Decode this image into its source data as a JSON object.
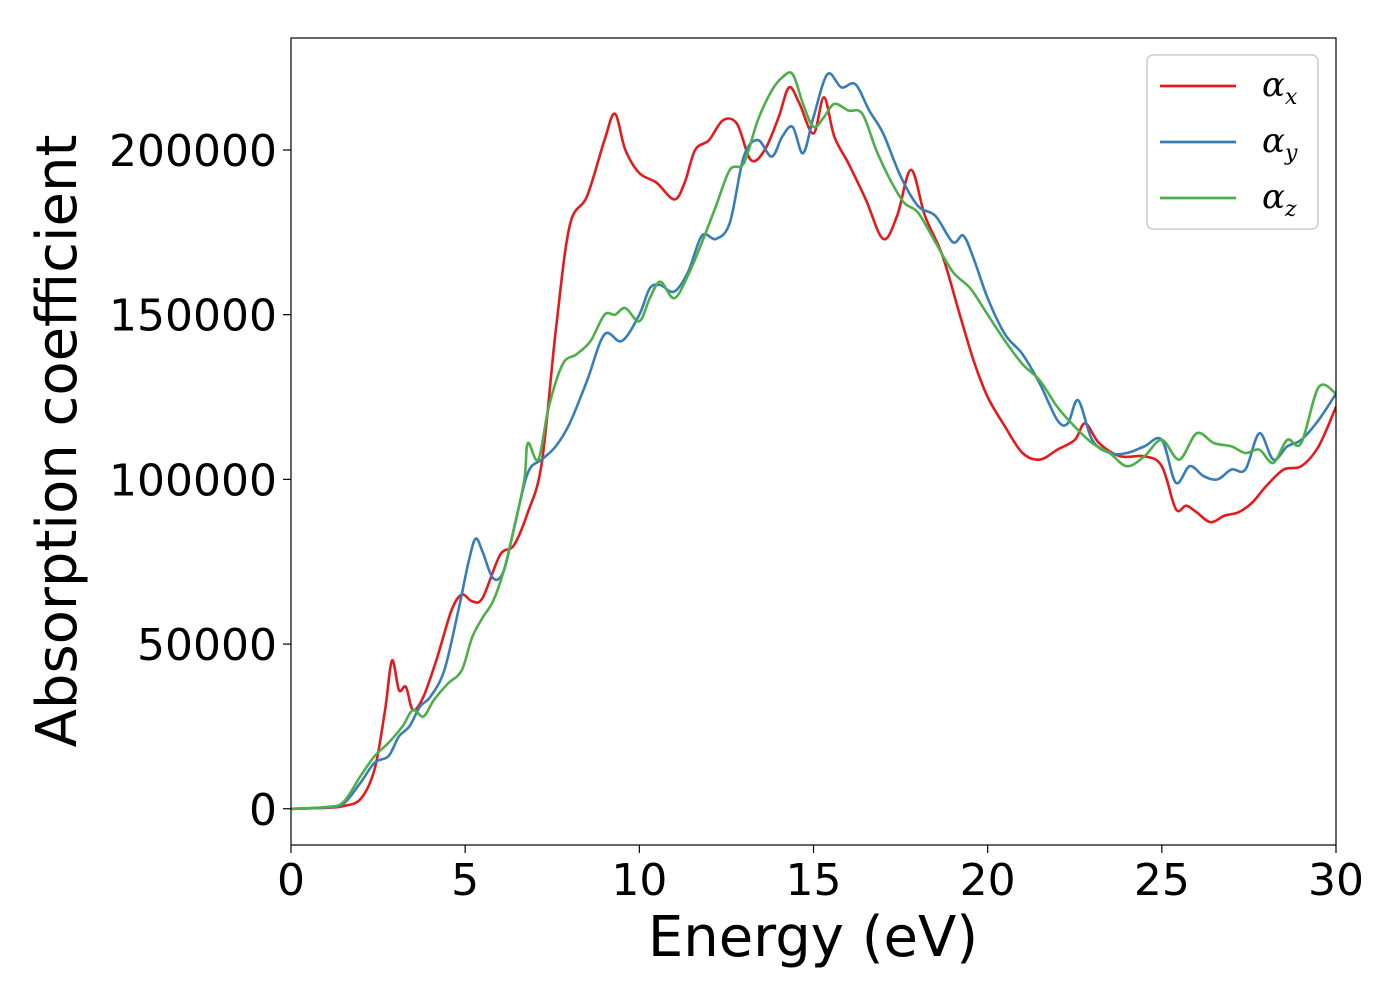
{
  "chart_data": {
    "type": "line",
    "title": "",
    "xlabel": "Energy (eV)",
    "ylabel": "Absorption coefficient",
    "xlim": [
      0,
      30
    ],
    "ylim": [
      -11000,
      234000
    ],
    "xticks": [
      0,
      5,
      10,
      15,
      20,
      25,
      30
    ],
    "yticks": [
      0,
      50000,
      100000,
      150000,
      200000
    ],
    "xtick_labels": [
      "0",
      "5",
      "10",
      "15",
      "20",
      "25",
      "30"
    ],
    "ytick_labels": [
      "0",
      "50000",
      "100000",
      "150000",
      "200000"
    ],
    "grid": false,
    "legend_position": "top-right",
    "series": [
      {
        "name": "α",
        "name_sub": "x",
        "color": "#e41a1c",
        "x": [
          0,
          1.0,
          1.5,
          2.0,
          2.4,
          2.7,
          2.9,
          3.1,
          3.3,
          3.5,
          3.8,
          4.2,
          4.6,
          4.9,
          5.2,
          5.5,
          6.0,
          6.4,
          6.8,
          7.2,
          7.6,
          8.0,
          8.5,
          9.0,
          9.3,
          9.6,
          10.0,
          10.5,
          11.0,
          11.3,
          11.6,
          12.0,
          12.4,
          12.8,
          13.2,
          13.6,
          14.0,
          14.3,
          14.6,
          15.0,
          15.3,
          15.6,
          16.0,
          16.5,
          17.0,
          17.4,
          17.8,
          18.2,
          18.7,
          19.2,
          19.6,
          20.0,
          20.5,
          21.0,
          21.5,
          22.0,
          22.5,
          22.8,
          23.2,
          23.8,
          24.5,
          25.0,
          25.4,
          25.7,
          26.0,
          26.4,
          26.8,
          27.2,
          27.6,
          28.0,
          28.5,
          29.0,
          29.5,
          30.0
        ],
        "y": [
          0,
          300,
          800,
          3000,
          12000,
          30000,
          45000,
          36000,
          37000,
          30000,
          34000,
          46000,
          60000,
          65000,
          63000,
          64000,
          77000,
          80000,
          90000,
          105000,
          145000,
          177000,
          186000,
          203000,
          211000,
          200000,
          193000,
          190000,
          185000,
          190000,
          200000,
          203000,
          209000,
          208000,
          197000,
          200000,
          210000,
          219000,
          214000,
          205000,
          216000,
          204000,
          196000,
          185000,
          173000,
          180000,
          194000,
          180000,
          168000,
          150000,
          136000,
          125000,
          116000,
          108000,
          106000,
          109000,
          112000,
          117000,
          111000,
          107000,
          107000,
          104000,
          91000,
          92000,
          90000,
          87000,
          89000,
          90000,
          93000,
          98000,
          103000,
          104000,
          110000,
          122000
        ]
      },
      {
        "name": "α",
        "name_sub": "y",
        "color": "#377eb8",
        "x": [
          0,
          1.0,
          1.5,
          2.0,
          2.4,
          2.8,
          3.1,
          3.4,
          3.7,
          4.0,
          4.4,
          4.8,
          5.1,
          5.3,
          5.5,
          5.8,
          6.1,
          6.4,
          6.8,
          7.2,
          7.6,
          8.0,
          8.5,
          9.0,
          9.5,
          10.0,
          10.3,
          10.6,
          11.0,
          11.4,
          11.8,
          12.2,
          12.6,
          13.0,
          13.4,
          13.8,
          14.1,
          14.4,
          14.7,
          15.0,
          15.4,
          15.8,
          16.2,
          16.6,
          17.0,
          17.5,
          18.0,
          18.5,
          19.0,
          19.3,
          19.6,
          20.0,
          20.5,
          21.0,
          21.5,
          22.0,
          22.3,
          22.6,
          23.0,
          23.5,
          24.0,
          24.5,
          25.0,
          25.4,
          25.8,
          26.2,
          26.6,
          27.0,
          27.4,
          27.8,
          28.2,
          28.6,
          29.0,
          29.5,
          30.0
        ],
        "y": [
          0,
          400,
          1500,
          8000,
          14000,
          16000,
          22000,
          25000,
          31000,
          34000,
          42000,
          60000,
          75000,
          82000,
          78000,
          70000,
          72000,
          85000,
          102000,
          106000,
          110000,
          117000,
          130000,
          144000,
          142000,
          150000,
          158000,
          159000,
          157000,
          163000,
          174000,
          173000,
          178000,
          198000,
          203000,
          198000,
          204000,
          207000,
          199000,
          210000,
          223000,
          219000,
          220000,
          212000,
          205000,
          192000,
          183000,
          180000,
          172000,
          174000,
          167000,
          155000,
          144000,
          138000,
          129000,
          118000,
          117000,
          124000,
          112000,
          108000,
          108000,
          110000,
          112000,
          99000,
          104000,
          101000,
          100000,
          103000,
          103000,
          114000,
          106000,
          110000,
          112000,
          118000,
          126000
        ]
      },
      {
        "name": "α",
        "name_sub": "z",
        "color": "#4daf4a",
        "x": [
          0,
          1.0,
          1.5,
          2.0,
          2.4,
          2.8,
          3.2,
          3.5,
          3.8,
          4.1,
          4.5,
          4.9,
          5.2,
          5.5,
          5.8,
          6.1,
          6.4,
          6.7,
          6.8,
          7.1,
          7.4,
          7.8,
          8.2,
          8.6,
          9.0,
          9.3,
          9.6,
          10.0,
          10.3,
          10.6,
          11.0,
          11.4,
          11.8,
          12.2,
          12.6,
          13.0,
          13.4,
          13.8,
          14.1,
          14.4,
          14.7,
          15.0,
          15.3,
          15.6,
          16.0,
          16.4,
          16.8,
          17.2,
          17.6,
          18.0,
          18.5,
          19.0,
          19.5,
          20.0,
          20.5,
          21.0,
          21.5,
          22.0,
          22.5,
          23.0,
          23.5,
          24.0,
          24.5,
          25.0,
          25.5,
          26.0,
          26.5,
          27.0,
          27.4,
          27.8,
          28.2,
          28.6,
          29.0,
          29.5,
          30.0
        ],
        "y": [
          0,
          500,
          2000,
          10000,
          16000,
          20000,
          25000,
          30000,
          28000,
          33000,
          38000,
          42000,
          52000,
          58000,
          63000,
          72000,
          85000,
          100000,
          111000,
          106000,
          122000,
          135000,
          138000,
          142000,
          150000,
          150000,
          152000,
          148000,
          155000,
          160000,
          155000,
          162000,
          172000,
          183000,
          194000,
          196000,
          209000,
          218000,
          222000,
          223000,
          214000,
          207000,
          210000,
          214000,
          212000,
          211000,
          200000,
          191000,
          184000,
          181000,
          172000,
          163000,
          158000,
          150000,
          142000,
          135000,
          130000,
          122000,
          116000,
          111000,
          108000,
          104000,
          107000,
          112000,
          106000,
          114000,
          111000,
          110000,
          108000,
          109000,
          105000,
          112000,
          111000,
          128000,
          126000
        ]
      }
    ]
  }
}
